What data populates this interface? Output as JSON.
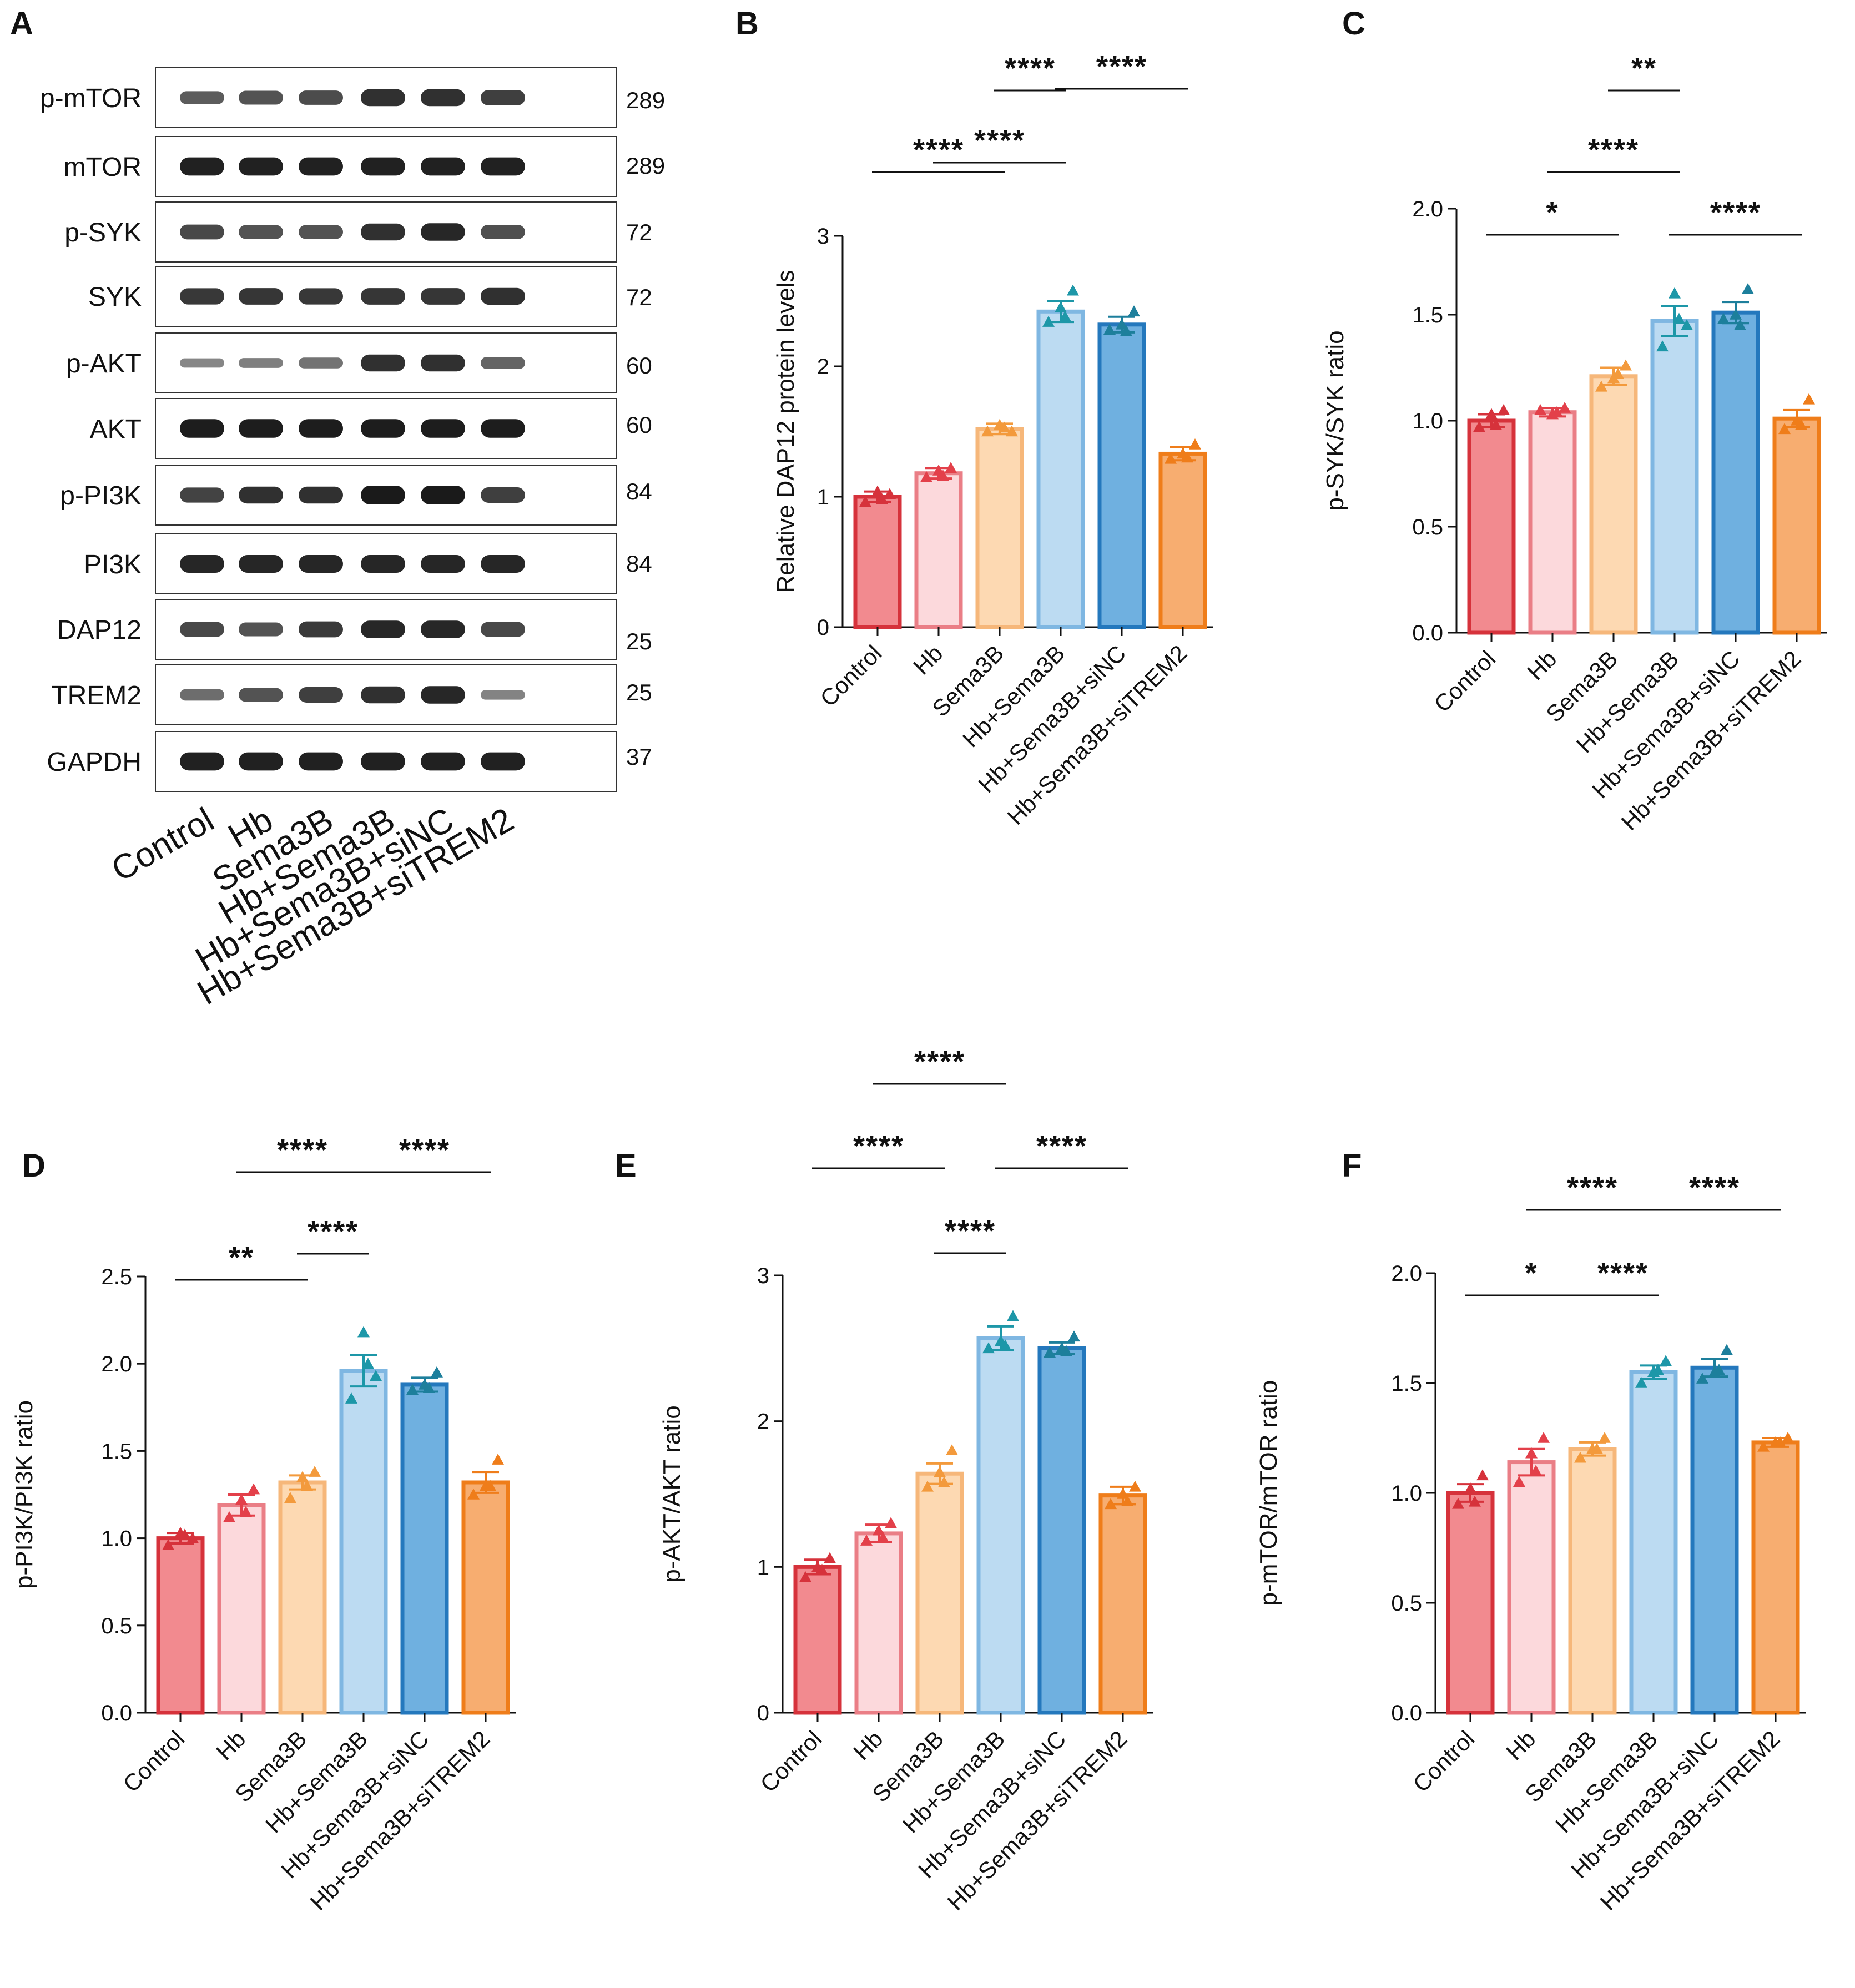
{
  "panel_letters": [
    "A",
    "B",
    "C",
    "D",
    "E",
    "F"
  ],
  "colors": {
    "fills": [
      "#f28a8f",
      "#fcd9dc",
      "#fdd9b2",
      "#bcdbf2",
      "#6fb0e0",
      "#f7ad70"
    ],
    "strokes": [
      "#d6323b",
      "#ea7e86",
      "#f6b77a",
      "#7fb7e2",
      "#2478bd",
      "#ef7d1a"
    ],
    "points": [
      "#d6323b",
      "#e3404a",
      "#f39a3c",
      "#1d97a8",
      "#1d7f9c",
      "#ef7d1a"
    ],
    "text": "#111111",
    "blot_band": "#1a1a1a"
  },
  "western_blot": {
    "panel": "A",
    "lanes": [
      "Control",
      "Hb",
      "Sema3B",
      "Hb+Sema3B",
      "Hb+Sema3B+siNC",
      "Hb+Sema3B+siTREM2"
    ],
    "rows": [
      {
        "label": "p-mTOR",
        "mw": "289",
        "intensity": [
          0.55,
          0.62,
          0.66,
          0.85,
          0.85,
          0.75
        ]
      },
      {
        "label": "mTOR",
        "mw": "289",
        "intensity": [
          0.95,
          0.95,
          0.95,
          0.95,
          0.95,
          0.95
        ]
      },
      {
        "label": "p-SYK",
        "mw": "72",
        "intensity": [
          0.7,
          0.62,
          0.62,
          0.85,
          0.9,
          0.65
        ]
      },
      {
        "label": "SYK",
        "mw": "72",
        "intensity": [
          0.8,
          0.82,
          0.8,
          0.82,
          0.82,
          0.85
        ]
      },
      {
        "label": "p-AKT",
        "mw": "60",
        "intensity": [
          0.28,
          0.32,
          0.4,
          0.85,
          0.85,
          0.5
        ]
      },
      {
        "label": "AKT",
        "mw": "60",
        "intensity": [
          0.98,
          0.98,
          0.98,
          0.98,
          0.98,
          0.98
        ]
      },
      {
        "label": "p-PI3K",
        "mw": "84",
        "intensity": [
          0.72,
          0.85,
          0.85,
          1.0,
          1.0,
          0.75
        ]
      },
      {
        "label": "PI3K",
        "mw": "84",
        "intensity": [
          0.92,
          0.92,
          0.92,
          0.92,
          0.92,
          0.92
        ]
      },
      {
        "label": "DAP12",
        "mw": "25",
        "intensity": [
          0.7,
          0.62,
          0.78,
          0.9,
          0.9,
          0.7
        ]
      },
      {
        "label": "TREM2",
        "mw": "25",
        "intensity": [
          0.45,
          0.62,
          0.75,
          0.85,
          0.9,
          0.3
        ]
      },
      {
        "label": "GAPDH",
        "mw": "37",
        "intensity": [
          0.95,
          0.95,
          0.95,
          0.95,
          0.95,
          0.95
        ]
      }
    ]
  },
  "chart_data": [
    {
      "panel": "B",
      "type": "bar",
      "categories": [
        "Control",
        "Hb",
        "Sema3B",
        "Hb+Sema3B",
        "Hb+Sema3B+siNC",
        "Hb+Sema3B+siTREM2"
      ],
      "values": [
        1.0,
        1.18,
        1.52,
        2.42,
        2.32,
        1.33
      ],
      "errors": [
        0.04,
        0.04,
        0.04,
        0.08,
        0.06,
        0.05
      ],
      "points": [
        [
          0.96,
          1.04,
          1.02,
          0.98
        ],
        [
          1.15,
          1.2,
          1.22,
          1.16
        ],
        [
          1.5,
          1.55,
          1.5,
          1.53
        ],
        [
          2.34,
          2.45,
          2.58,
          2.38
        ],
        [
          2.28,
          2.32,
          2.42,
          2.27
        ],
        [
          1.29,
          1.33,
          1.4,
          1.3
        ]
      ],
      "ylabel": "Relative DAP12 protein levels",
      "xlabel": "",
      "ylim": [
        0,
        3
      ],
      "yticks": [
        "0",
        "1",
        "2",
        "3"
      ],
      "significance": [
        {
          "from": 0,
          "to": 2,
          "label": "****"
        },
        {
          "from": 2,
          "to": 3,
          "label": "****"
        },
        {
          "from": 1,
          "to": 3,
          "label": "****"
        },
        {
          "from": 3,
          "to": 5,
          "label": "****"
        }
      ]
    },
    {
      "panel": "C",
      "type": "bar",
      "categories": [
        "Control",
        "Hb",
        "Sema3B",
        "Hb+Sema3B",
        "Hb+Sema3B+siNC",
        "Hb+Sema3B+siTREM2"
      ],
      "values": [
        1.0,
        1.04,
        1.21,
        1.47,
        1.51,
        1.01
      ],
      "errors": [
        0.03,
        0.02,
        0.04,
        0.07,
        0.05,
        0.04
      ],
      "points": [
        [
          0.97,
          1.03,
          1.05,
          0.98
        ],
        [
          1.05,
          1.03,
          1.06,
          1.04
        ],
        [
          1.16,
          1.2,
          1.26,
          1.22
        ],
        [
          1.35,
          1.6,
          1.45,
          1.48
        ],
        [
          1.48,
          1.5,
          1.62,
          1.45
        ],
        [
          0.96,
          1.0,
          1.1,
          0.98
        ]
      ],
      "ylabel": "p-SYK/SYK ratio",
      "xlabel": "",
      "ylim": [
        0,
        2.0
      ],
      "yticks": [
        "0.0",
        "0.5",
        "1.0",
        "1.5",
        "2.0"
      ],
      "significance": [
        {
          "from": 0,
          "to": 2,
          "label": "*"
        },
        {
          "from": 2,
          "to": 3,
          "label": "**"
        },
        {
          "from": 1,
          "to": 3,
          "label": "****"
        },
        {
          "from": 3,
          "to": 5,
          "label": "****"
        }
      ]
    },
    {
      "panel": "D",
      "type": "bar",
      "categories": [
        "Control",
        "Hb",
        "Sema3B",
        "Hb+Sema3B",
        "Hb+Sema3B+siNC",
        "Hb+Sema3B+siTREM2"
      ],
      "values": [
        1.0,
        1.19,
        1.32,
        1.96,
        1.88,
        1.32
      ],
      "errors": [
        0.03,
        0.06,
        0.04,
        0.09,
        0.04,
        0.06
      ],
      "points": [
        [
          0.96,
          1.03,
          1.0,
          1.02
        ],
        [
          1.12,
          1.22,
          1.28,
          1.15
        ],
        [
          1.23,
          1.35,
          1.38,
          1.3
        ],
        [
          1.8,
          2.18,
          1.93,
          2.0
        ],
        [
          1.85,
          1.88,
          1.95,
          1.86
        ],
        [
          1.25,
          1.3,
          1.45,
          1.3
        ]
      ],
      "ylabel": "p-PI3K/PI3K ratio",
      "xlabel": "",
      "ylim": [
        0,
        2.5
      ],
      "yticks": [
        "0.0",
        "0.5",
        "1.0",
        "1.5",
        "2.0",
        "2.5"
      ],
      "significance": [
        {
          "from": 0,
          "to": 2,
          "label": "**"
        },
        {
          "from": 2,
          "to": 3,
          "label": "****"
        },
        {
          "from": 1,
          "to": 3,
          "label": "****"
        },
        {
          "from": 3,
          "to": 5,
          "label": "****"
        }
      ]
    },
    {
      "panel": "E",
      "type": "bar",
      "categories": [
        "Control",
        "Hb",
        "Sema3B",
        "Hb+Sema3B",
        "Hb+Sema3B+siNC",
        "Hb+Sema3B+siTREM2"
      ],
      "values": [
        1.0,
        1.23,
        1.64,
        2.57,
        2.5,
        1.49
      ],
      "errors": [
        0.05,
        0.06,
        0.07,
        0.08,
        0.04,
        0.06
      ],
      "points": [
        [
          0.93,
          1.0,
          1.06,
          0.98
        ],
        [
          1.18,
          1.25,
          1.3,
          1.2
        ],
        [
          1.55,
          1.65,
          1.8,
          1.58
        ],
        [
          2.5,
          2.55,
          2.72,
          2.52
        ],
        [
          2.47,
          2.5,
          2.58,
          2.48
        ],
        [
          1.43,
          1.5,
          1.55,
          1.45
        ]
      ],
      "ylabel": "p-AKT/AKT ratio",
      "xlabel": "",
      "ylim": [
        0,
        3
      ],
      "yticks": [
        "0",
        "1",
        "2",
        "3"
      ],
      "significance": [
        {
          "from": 2,
          "to": 3,
          "label": "****"
        },
        {
          "from": 0,
          "to": 2,
          "label": "****"
        },
        {
          "from": 3,
          "to": 5,
          "label": "****"
        },
        {
          "from": 1,
          "to": 3,
          "label": "****"
        }
      ]
    },
    {
      "panel": "F",
      "type": "bar",
      "categories": [
        "Control",
        "Hb",
        "Sema3B",
        "Hb+Sema3B",
        "Hb+Sema3B+siNC",
        "Hb+Sema3B+siTREM2"
      ],
      "values": [
        1.0,
        1.14,
        1.2,
        1.55,
        1.57,
        1.23
      ],
      "errors": [
        0.04,
        0.06,
        0.03,
        0.03,
        0.04,
        0.02
      ],
      "points": [
        [
          0.95,
          1.02,
          1.08,
          0.96
        ],
        [
          1.05,
          1.18,
          1.25,
          1.1
        ],
        [
          1.16,
          1.2,
          1.25,
          1.2
        ],
        [
          1.5,
          1.55,
          1.6,
          1.56
        ],
        [
          1.52,
          1.55,
          1.65,
          1.56
        ],
        [
          1.21,
          1.23,
          1.25,
          1.23
        ]
      ],
      "ylabel": "p-mTOR/mTOR ratio",
      "xlabel": "",
      "ylim": [
        0,
        2.0
      ],
      "yticks": [
        "0.0",
        "0.5",
        "1.0",
        "1.5",
        "2.0"
      ],
      "significance": [
        {
          "from": 0,
          "to": 2,
          "label": "*"
        },
        {
          "from": 2,
          "to": 3,
          "label": "****"
        },
        {
          "from": 1,
          "to": 3,
          "label": "****"
        },
        {
          "from": 3,
          "to": 5,
          "label": "****"
        }
      ]
    }
  ]
}
